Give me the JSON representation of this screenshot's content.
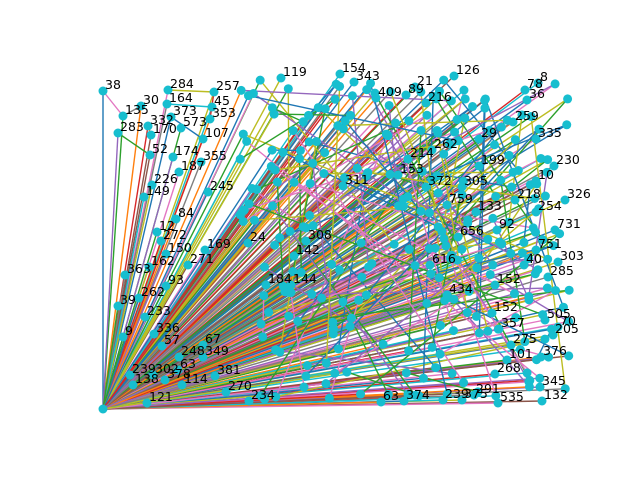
{
  "diagram": {
    "type": "network-graph",
    "node_color": "#17becf",
    "edge_colors": [
      "#1f77b4",
      "#ff7f0e",
      "#2ca02c",
      "#d62728",
      "#9467bd",
      "#8c564b",
      "#e377c2",
      "#7f7f7f",
      "#bcbd22",
      "#17becf"
    ],
    "hub_node": "hub",
    "nodes": [
      {
        "id": "38",
        "label": "38"
      },
      {
        "id": "30",
        "label": "30"
      },
      {
        "id": "135",
        "label": "135"
      },
      {
        "id": "332",
        "label": "332"
      },
      {
        "id": "283",
        "label": "283"
      },
      {
        "id": "170",
        "label": "170"
      },
      {
        "id": "284",
        "label": "284"
      },
      {
        "id": "164",
        "label": "164"
      },
      {
        "id": "257",
        "label": "257"
      },
      {
        "id": "45",
        "label": "45"
      },
      {
        "id": "373",
        "label": "373"
      },
      {
        "id": "353",
        "label": "353"
      },
      {
        "id": "573",
        "label": "573"
      },
      {
        "id": "107",
        "label": "107"
      },
      {
        "id": "174",
        "label": "174"
      },
      {
        "id": "52",
        "label": "52"
      },
      {
        "id": "187",
        "label": "187"
      },
      {
        "id": "355",
        "label": "355"
      },
      {
        "id": "226",
        "label": "226"
      },
      {
        "id": "149",
        "label": "149"
      },
      {
        "id": "245",
        "label": "245"
      },
      {
        "id": "84",
        "label": "84"
      },
      {
        "id": "12",
        "label": "12"
      },
      {
        "id": "272",
        "label": "272"
      },
      {
        "id": "150",
        "label": "150"
      },
      {
        "id": "271",
        "label": "271"
      },
      {
        "id": "169",
        "label": "169"
      },
      {
        "id": "363",
        "label": "363"
      },
      {
        "id": "162",
        "label": "162"
      },
      {
        "id": "93",
        "label": "93"
      },
      {
        "id": "262",
        "label": "262"
      },
      {
        "id": "233",
        "label": "233"
      },
      {
        "id": "39",
        "label": "39"
      },
      {
        "id": "336",
        "label": "336"
      },
      {
        "id": "57",
        "label": "57"
      },
      {
        "id": "67",
        "label": "67"
      },
      {
        "id": "248",
        "label": "248"
      },
      {
        "id": "349",
        "label": "349"
      },
      {
        "id": "63",
        "label": "63"
      },
      {
        "id": "239",
        "label": "239"
      },
      {
        "id": "302",
        "label": "302"
      },
      {
        "id": "138",
        "label": "138"
      },
      {
        "id": "378",
        "label": "378"
      },
      {
        "id": "114",
        "label": "114"
      },
      {
        "id": "121",
        "label": "121"
      },
      {
        "id": "381",
        "label": "381"
      },
      {
        "id": "270",
        "label": "270"
      },
      {
        "id": "234",
        "label": "234"
      },
      {
        "id": "119",
        "label": "119"
      },
      {
        "id": "154",
        "label": "154"
      },
      {
        "id": "343",
        "label": "343"
      },
      {
        "id": "409",
        "label": "409"
      },
      {
        "id": "21",
        "label": "21"
      },
      {
        "id": "89",
        "label": "89"
      },
      {
        "id": "216",
        "label": "216"
      },
      {
        "id": "126",
        "label": "126"
      },
      {
        "id": "335",
        "label": "335"
      },
      {
        "id": "230",
        "label": "230"
      },
      {
        "id": "326",
        "label": "326"
      },
      {
        "id": "254",
        "label": "254"
      },
      {
        "id": "731",
        "label": "731"
      },
      {
        "id": "751",
        "label": "751"
      },
      {
        "id": "133",
        "label": "133"
      },
      {
        "id": "305",
        "label": "305"
      },
      {
        "id": "372",
        "label": "372"
      },
      {
        "id": "759",
        "label": "759"
      },
      {
        "id": "199",
        "label": "199"
      },
      {
        "id": "152",
        "label": "152"
      },
      {
        "id": "205",
        "label": "205"
      },
      {
        "id": "70",
        "label": "70"
      },
      {
        "id": "275",
        "label": "275"
      },
      {
        "id": "376",
        "label": "376"
      },
      {
        "id": "101",
        "label": "101"
      },
      {
        "id": "268",
        "label": "268"
      },
      {
        "id": "345",
        "label": "345"
      },
      {
        "id": "132",
        "label": "132"
      },
      {
        "id": "535",
        "label": "535"
      },
      {
        "id": "291",
        "label": "291"
      },
      {
        "id": "375",
        "label": "375"
      },
      {
        "id": "239b",
        "label": "239"
      },
      {
        "id": "374",
        "label": "374"
      },
      {
        "id": "63b",
        "label": "63"
      },
      {
        "id": "357",
        "label": "357"
      },
      {
        "id": "616",
        "label": "616"
      },
      {
        "id": "434",
        "label": "434"
      },
      {
        "id": "24",
        "label": "24"
      },
      {
        "id": "142",
        "label": "142"
      },
      {
        "id": "308",
        "label": "308"
      },
      {
        "id": "184",
        "label": "184"
      },
      {
        "id": "144",
        "label": "144"
      },
      {
        "id": "153",
        "label": "153"
      },
      {
        "id": "214",
        "label": "214"
      },
      {
        "id": "262b",
        "label": "262"
      },
      {
        "id": "29",
        "label": "29"
      },
      {
        "id": "10",
        "label": "10"
      },
      {
        "id": "218",
        "label": "218"
      },
      {
        "id": "505",
        "label": "505"
      },
      {
        "id": "285",
        "label": "285"
      },
      {
        "id": "303",
        "label": "303"
      },
      {
        "id": "8",
        "label": "8"
      },
      {
        "id": "36",
        "label": "36"
      },
      {
        "id": "259",
        "label": "259"
      },
      {
        "id": "9",
        "label": "9"
      },
      {
        "id": "78",
        "label": "78"
      },
      {
        "id": "40",
        "label": "40"
      },
      {
        "id": "311",
        "label": "311"
      },
      {
        "id": "656",
        "label": "656"
      },
      {
        "id": "152b",
        "label": "152"
      },
      {
        "id": "92",
        "label": "92"
      }
    ]
  }
}
